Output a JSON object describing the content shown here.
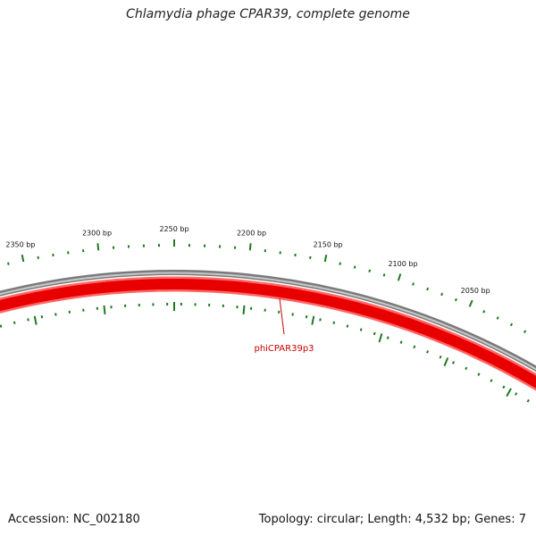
{
  "title": "Chlamydia phage CPAR39, complete genome",
  "accession_text": "Accession: NC_002180",
  "summary_text": "Topology: circular; Length: 4,532 bp; Genes: 7",
  "colors": {
    "backbone_outer": "#7a7a7a",
    "backbone_inner": "#c8c8c8",
    "gene": "#e80000",
    "gene_edge": "#ff6666",
    "ticks": "#1f7a1f",
    "gene_label": "#cc0000"
  },
  "scale_labels": [
    {
      "bp": 2050,
      "text": "2050 bp"
    },
    {
      "bp": 2100,
      "text": "2100 bp"
    },
    {
      "bp": 2150,
      "text": "2150 bp"
    },
    {
      "bp": 2200,
      "text": "2200 bp"
    },
    {
      "bp": 2250,
      "text": "2250 bp"
    },
    {
      "bp": 2300,
      "text": "2300 bp"
    },
    {
      "bp": 2350,
      "text": "2350 bp"
    }
  ],
  "genes": [
    {
      "name": "phiCPAR39p3",
      "strand": "minus"
    }
  ]
}
